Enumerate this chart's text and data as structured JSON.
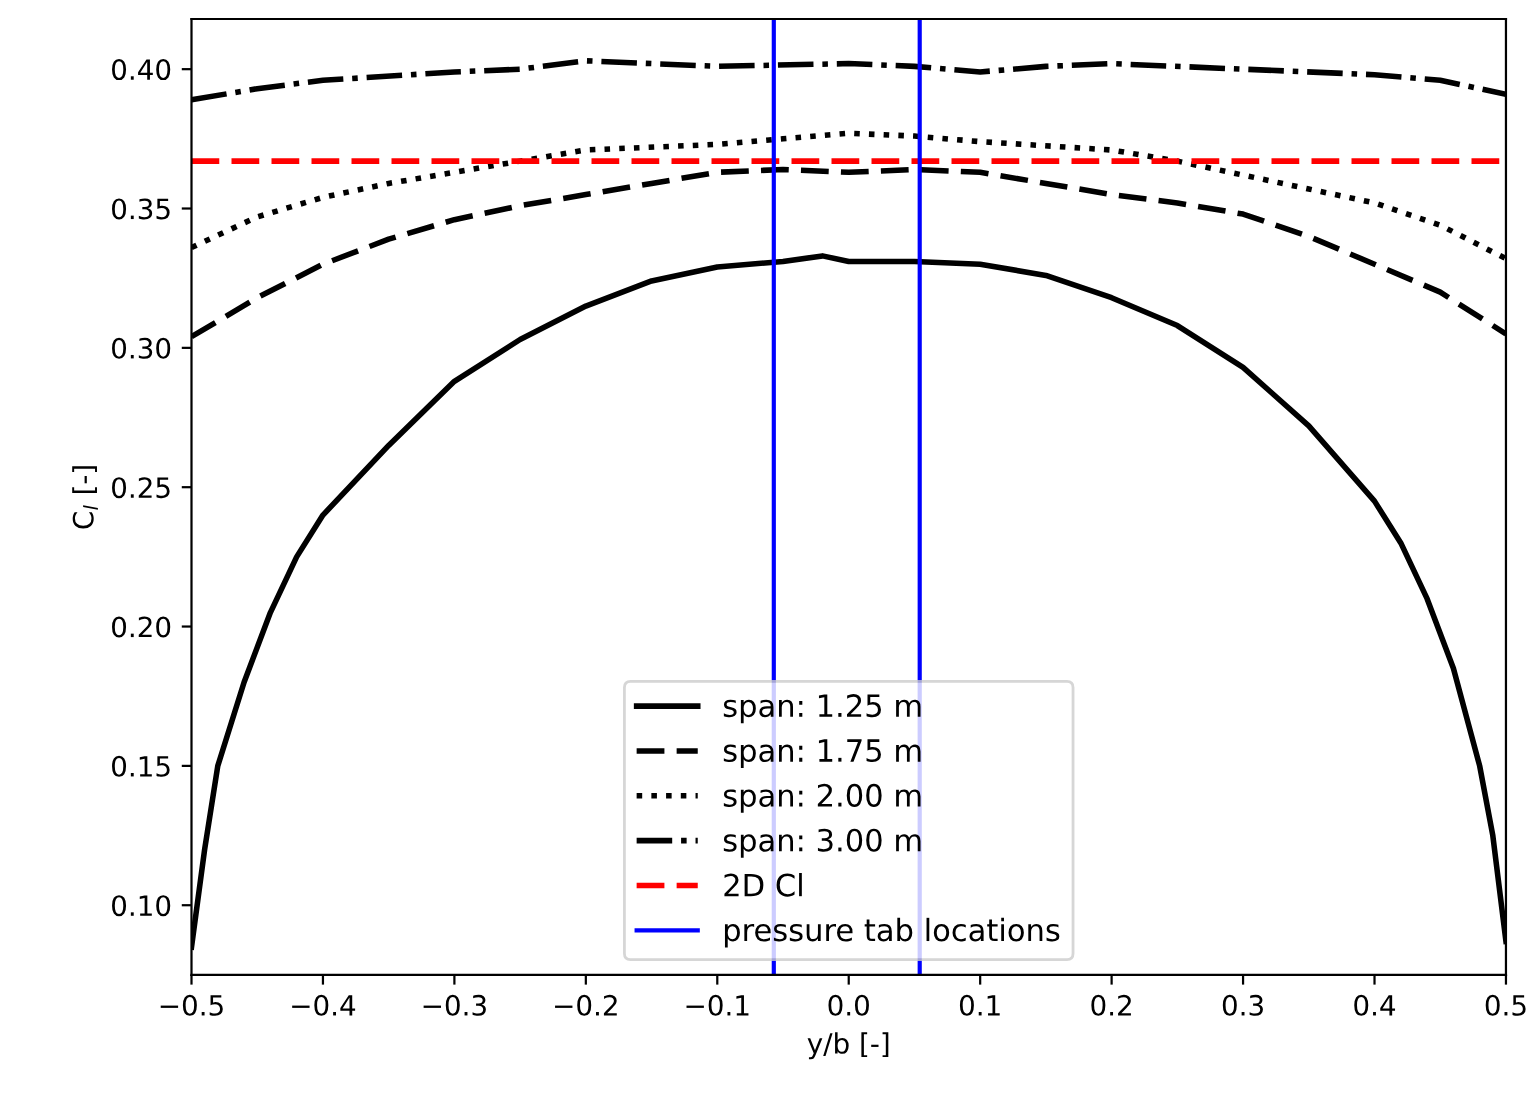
{
  "chart_data": {
    "type": "line",
    "xlabel": "y/b [-]",
    "ylabel": "C$_{l}$ [-]",
    "xlim": [
      -0.5,
      0.5
    ],
    "ylim": [
      0.075,
      0.418
    ],
    "xticks": [
      {
        "value": -0.5,
        "label": "−0.5"
      },
      {
        "value": -0.4,
        "label": "−0.4"
      },
      {
        "value": -0.3,
        "label": "−0.3"
      },
      {
        "value": -0.2,
        "label": "−0.2"
      },
      {
        "value": -0.1,
        "label": "−0.1"
      },
      {
        "value": 0.0,
        "label": "0.0"
      },
      {
        "value": 0.1,
        "label": "0.1"
      },
      {
        "value": 0.2,
        "label": "0.2"
      },
      {
        "value": 0.3,
        "label": "0.3"
      },
      {
        "value": 0.4,
        "label": "0.4"
      },
      {
        "value": 0.5,
        "label": "0.5"
      }
    ],
    "yticks": [
      {
        "value": 0.1,
        "label": "0.10"
      },
      {
        "value": 0.15,
        "label": "0.15"
      },
      {
        "value": 0.2,
        "label": "0.20"
      },
      {
        "value": 0.25,
        "label": "0.25"
      },
      {
        "value": 0.3,
        "label": "0.30"
      },
      {
        "value": 0.35,
        "label": "0.35"
      },
      {
        "value": 0.4,
        "label": "0.40"
      }
    ],
    "grid": false,
    "legend": "bottom",
    "marker": "none",
    "series": [
      {
        "name": "span: 1.25 m",
        "color": "#000000",
        "line_style": "solid",
        "x": [
          -0.5,
          -0.49,
          -0.48,
          -0.46,
          -0.44,
          -0.42,
          -0.4,
          -0.35,
          -0.3,
          -0.25,
          -0.2,
          -0.15,
          -0.1,
          -0.05,
          -0.02,
          0,
          0.05,
          0.1,
          0.15,
          0.2,
          0.25,
          0.3,
          0.35,
          0.4,
          0.42,
          0.44,
          0.46,
          0.48,
          0.49,
          0.5
        ],
        "values": [
          0.085,
          0.12,
          0.15,
          0.18,
          0.205,
          0.225,
          0.24,
          0.265,
          0.288,
          0.303,
          0.315,
          0.324,
          0.329,
          0.331,
          0.333,
          0.331,
          0.331,
          0.33,
          0.326,
          0.318,
          0.308,
          0.293,
          0.272,
          0.245,
          0.23,
          0.21,
          0.185,
          0.15,
          0.125,
          0.087
        ]
      },
      {
        "name": "span: 1.75 m",
        "color": "#000000",
        "line_style": "dashed",
        "x": [
          -0.5,
          -0.45,
          -0.4,
          -0.35,
          -0.3,
          -0.25,
          -0.2,
          -0.15,
          -0.1,
          -0.05,
          0,
          0.05,
          0.1,
          0.15,
          0.2,
          0.25,
          0.3,
          0.35,
          0.4,
          0.45,
          0.5
        ],
        "values": [
          0.304,
          0.318,
          0.33,
          0.339,
          0.346,
          0.351,
          0.355,
          0.359,
          0.363,
          0.364,
          0.363,
          0.364,
          0.363,
          0.359,
          0.355,
          0.352,
          0.348,
          0.34,
          0.33,
          0.32,
          0.305
        ]
      },
      {
        "name": "span: 2.00 m",
        "color": "#000000",
        "line_style": "dotted",
        "x": [
          -0.5,
          -0.45,
          -0.4,
          -0.35,
          -0.3,
          -0.25,
          -0.2,
          -0.1,
          -0.05,
          0,
          0.05,
          0.1,
          0.2,
          0.25,
          0.3,
          0.35,
          0.4,
          0.45,
          0.5
        ],
        "values": [
          0.336,
          0.347,
          0.354,
          0.359,
          0.363,
          0.367,
          0.371,
          0.373,
          0.375,
          0.377,
          0.376,
          0.374,
          0.371,
          0.367,
          0.362,
          0.357,
          0.352,
          0.344,
          0.332
        ]
      },
      {
        "name": "span: 3.00 m",
        "color": "#000000",
        "line_style": "dashdot",
        "x": [
          -0.5,
          -0.45,
          -0.4,
          -0.3,
          -0.25,
          -0.2,
          -0.1,
          0,
          0.05,
          0.1,
          0.15,
          0.2,
          0.3,
          0.4,
          0.45,
          0.5
        ],
        "values": [
          0.389,
          0.393,
          0.396,
          0.399,
          0.4,
          0.403,
          0.401,
          0.402,
          0.401,
          0.399,
          0.401,
          0.402,
          0.4,
          0.398,
          0.396,
          0.391
        ]
      }
    ],
    "ref_lines": [
      {
        "axis": "y",
        "value": 0.367,
        "label": "2D Cl",
        "color": "#ff0000",
        "line_style": "dashed"
      },
      {
        "axis": "x",
        "value": -0.057,
        "label": "pressure tab locations",
        "color": "#0000ff",
        "line_style": "solid"
      },
      {
        "axis": "x",
        "value": 0.054,
        "color": "#0000ff",
        "line_style": "solid"
      }
    ]
  }
}
